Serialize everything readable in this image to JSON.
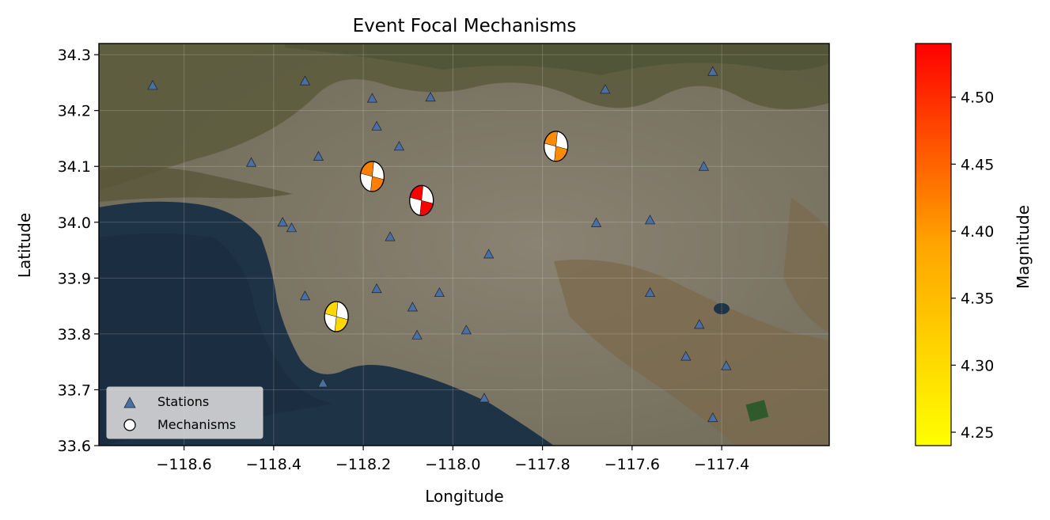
{
  "chart_data": {
    "type": "map-scatter",
    "title": "Event Focal Mechanisms",
    "xlabel": "Longitude",
    "ylabel": "Latitude",
    "xlim": [
      -118.79,
      -117.16
    ],
    "ylim": [
      33.6,
      34.32
    ],
    "xticks": [
      -118.6,
      -118.4,
      -118.2,
      -118.0,
      -117.8,
      -117.6,
      -117.4
    ],
    "xtick_labels": [
      "−118.6",
      "−118.4",
      "−118.2",
      "−118.0",
      "−117.8",
      "−117.6",
      "−117.4"
    ],
    "yticks": [
      33.6,
      33.7,
      33.8,
      33.9,
      34.0,
      34.1,
      34.2,
      34.3
    ],
    "ytick_labels": [
      "33.6",
      "33.7",
      "33.8",
      "33.9",
      "34.0",
      "34.1",
      "34.2",
      "34.3"
    ],
    "grid": true,
    "basemap": "satellite imagery",
    "legend": {
      "placement": "lower-left",
      "entries": [
        {
          "label": "Stations",
          "marker": "triangle",
          "color": "#4a6fa5"
        },
        {
          "label": "Mechanisms",
          "marker": "circle",
          "color": "#ffffff"
        }
      ]
    },
    "stations": [
      {
        "lon": -118.67,
        "lat": 34.245
      },
      {
        "lon": -118.33,
        "lat": 34.253
      },
      {
        "lon": -118.18,
        "lat": 34.222
      },
      {
        "lon": -118.05,
        "lat": 34.224
      },
      {
        "lon": -117.66,
        "lat": 34.238
      },
      {
        "lon": -117.42,
        "lat": 34.27
      },
      {
        "lon": -118.17,
        "lat": 34.172
      },
      {
        "lon": -118.12,
        "lat": 34.136
      },
      {
        "lon": -118.3,
        "lat": 34.118
      },
      {
        "lon": -118.45,
        "lat": 34.107
      },
      {
        "lon": -117.44,
        "lat": 34.1
      },
      {
        "lon": -118.38,
        "lat": 34.0
      },
      {
        "lon": -118.36,
        "lat": 33.99
      },
      {
        "lon": -117.68,
        "lat": 33.999
      },
      {
        "lon": -117.56,
        "lat": 34.004
      },
      {
        "lon": -118.14,
        "lat": 33.974
      },
      {
        "lon": -117.92,
        "lat": 33.943
      },
      {
        "lon": -118.17,
        "lat": 33.881
      },
      {
        "lon": -118.03,
        "lat": 33.874
      },
      {
        "lon": -117.56,
        "lat": 33.874
      },
      {
        "lon": -118.33,
        "lat": 33.868
      },
      {
        "lon": -118.09,
        "lat": 33.848
      },
      {
        "lon": -117.45,
        "lat": 33.817
      },
      {
        "lon": -117.97,
        "lat": 33.807
      },
      {
        "lon": -118.08,
        "lat": 33.798
      },
      {
        "lon": -117.48,
        "lat": 33.76
      },
      {
        "lon": -117.39,
        "lat": 33.743
      },
      {
        "lon": -118.29,
        "lat": 33.712
      },
      {
        "lon": -117.93,
        "lat": 33.685
      },
      {
        "lon": -117.42,
        "lat": 33.65
      }
    ],
    "mechanisms": [
      {
        "lon": -118.18,
        "lat": 34.082,
        "magnitude": 4.4,
        "color": "#ff7f00"
      },
      {
        "lon": -118.07,
        "lat": 34.039,
        "magnitude": 4.54,
        "color": "#ff0000"
      },
      {
        "lon": -117.77,
        "lat": 34.136,
        "magnitude": 4.42,
        "color": "#ff8c00"
      },
      {
        "lon": -118.26,
        "lat": 33.831,
        "magnitude": 4.31,
        "color": "#ffd700"
      }
    ],
    "colorbar": {
      "label": "Magnitude",
      "range": [
        4.24,
        4.54
      ],
      "ticks": [
        4.25,
        4.3,
        4.35,
        4.4,
        4.45,
        4.5
      ],
      "tick_labels": [
        "4.25",
        "4.30",
        "4.35",
        "4.40",
        "4.45",
        "4.50"
      ],
      "colors": [
        "#ffff00",
        "#ffa500",
        "#ff0000"
      ]
    }
  }
}
